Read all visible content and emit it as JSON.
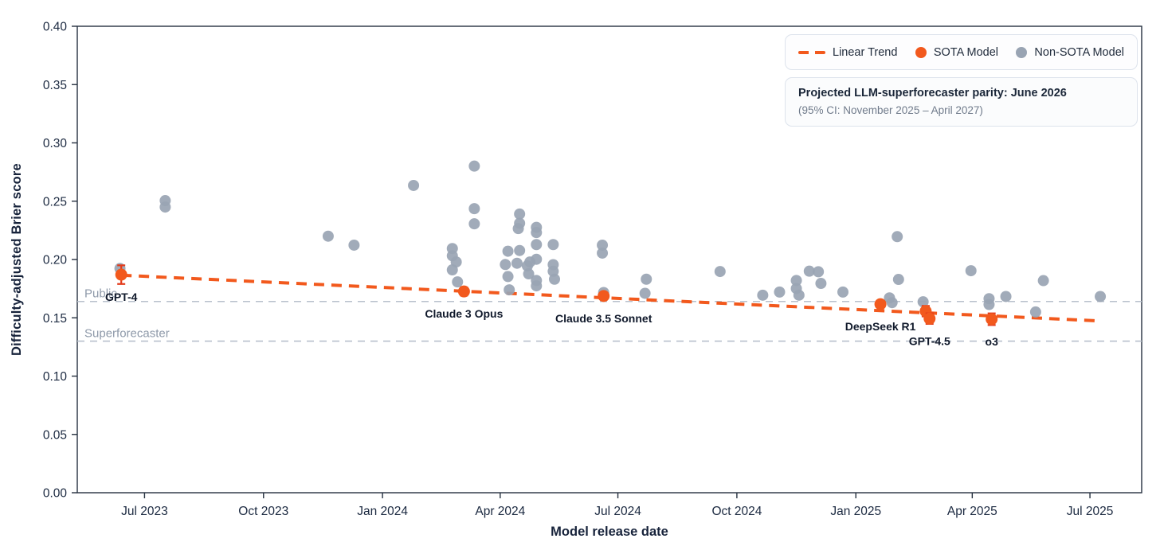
{
  "colors": {
    "accent_orange": "#f2591d",
    "error_bar": "#e23b1c",
    "non_sota_gray": "#99a4b3",
    "reference_line": "#b8c0cc",
    "dark_text": "#17233b",
    "muted_text": "#8e99a9",
    "frame": "#263140"
  },
  "chart_data": {
    "type": "scatter",
    "xlabel": "Model release date",
    "ylabel": "Difficulty-adjusted Brier score",
    "x_domain": [
      "2023-05-10",
      "2025-08-10"
    ],
    "ylim": [
      0.0,
      0.4
    ],
    "grid": false,
    "x_ticks": [
      {
        "date": "2023-07-01",
        "label": "Jul 2023"
      },
      {
        "date": "2023-10-01",
        "label": "Oct 2023"
      },
      {
        "date": "2024-01-01",
        "label": "Jan 2024"
      },
      {
        "date": "2024-04-01",
        "label": "Apr 2024"
      },
      {
        "date": "2024-07-01",
        "label": "Jul 2024"
      },
      {
        "date": "2024-10-01",
        "label": "Oct 2024"
      },
      {
        "date": "2025-01-01",
        "label": "Jan 2025"
      },
      {
        "date": "2025-04-01",
        "label": "Apr 2025"
      },
      {
        "date": "2025-07-01",
        "label": "Jul 2025"
      }
    ],
    "y_ticks": [
      {
        "value": 0.0,
        "label": "0.00"
      },
      {
        "value": 0.05,
        "label": "0.05"
      },
      {
        "value": 0.1,
        "label": "0.10"
      },
      {
        "value": 0.15,
        "label": "0.15"
      },
      {
        "value": 0.2,
        "label": "0.20"
      },
      {
        "value": 0.25,
        "label": "0.25"
      },
      {
        "value": 0.3,
        "label": "0.30"
      },
      {
        "value": 0.35,
        "label": "0.35"
      },
      {
        "value": 0.4,
        "label": "0.40"
      }
    ],
    "reference_lines": [
      {
        "label": "Public",
        "value": 0.164
      },
      {
        "label": "Superforecaster",
        "value": 0.13
      }
    ],
    "trend": {
      "name": "Linear Trend",
      "start": {
        "date": "2023-06-13",
        "value": 0.1865
      },
      "end": {
        "date": "2025-07-09",
        "value": 0.1473
      }
    },
    "series": [
      {
        "name": "SOTA Model",
        "points": [
          {
            "date": "2023-06-13",
            "value": 0.187,
            "err": 0.008,
            "label": "GPT-4"
          },
          {
            "date": "2024-03-04",
            "value": 0.1726,
            "err": 0.0035,
            "label": "Claude 3 Opus"
          },
          {
            "date": "2024-06-20",
            "value": 0.1687,
            "err": 0.003,
            "label": "Claude 3.5 Sonnet"
          },
          {
            "date": "2025-01-20",
            "value": 0.1617,
            "err": 0.003,
            "label": "DeepSeek R1"
          },
          {
            "date": "2025-02-24",
            "value": 0.1557,
            "err": 0.0045,
            "label": ""
          },
          {
            "date": "2025-02-27",
            "value": 0.1493,
            "err": 0.0045,
            "label": "GPT-4.5"
          },
          {
            "date": "2025-04-16",
            "value": 0.1488,
            "err": 0.005,
            "label": "o3"
          }
        ]
      },
      {
        "name": "Non-SOTA Model",
        "points": [
          [
            "2023-06-12",
            0.1923
          ],
          [
            "2023-07-17",
            0.2505
          ],
          [
            "2023-07-17",
            0.245
          ],
          [
            "2023-11-20",
            0.22
          ],
          [
            "2023-12-10",
            0.2123
          ],
          [
            "2024-01-25",
            0.2635
          ],
          [
            "2024-02-24",
            0.2094
          ],
          [
            "2024-02-24",
            0.2032
          ],
          [
            "2024-02-27",
            0.1979
          ],
          [
            "2024-02-24",
            0.1911
          ],
          [
            "2024-02-28",
            0.1808
          ],
          [
            "2024-03-12",
            0.2801
          ],
          [
            "2024-03-12",
            0.2436
          ],
          [
            "2024-03-12",
            0.2306
          ],
          [
            "2024-04-05",
            0.1957
          ],
          [
            "2024-04-07",
            0.2071
          ],
          [
            "2024-04-07",
            0.1854
          ],
          [
            "2024-04-08",
            0.174
          ],
          [
            "2024-04-14",
            0.1968
          ],
          [
            "2024-04-15",
            0.2265
          ],
          [
            "2024-04-16",
            0.239
          ],
          [
            "2024-04-16",
            0.2311
          ],
          [
            "2024-04-16",
            0.2077
          ],
          [
            "2024-04-22",
            0.1945
          ],
          [
            "2024-04-23",
            0.1877
          ],
          [
            "2024-04-24",
            0.1979
          ],
          [
            "2024-04-29",
            0.2276
          ],
          [
            "2024-04-29",
            0.2231
          ],
          [
            "2024-04-29",
            0.2128
          ],
          [
            "2024-04-29",
            0.2002
          ],
          [
            "2024-04-29",
            0.182
          ],
          [
            "2024-04-29",
            0.1774
          ],
          [
            "2024-05-12",
            0.2128
          ],
          [
            "2024-05-12",
            0.1956
          ],
          [
            "2024-05-12",
            0.1899
          ],
          [
            "2024-05-13",
            0.1831
          ],
          [
            "2024-06-19",
            0.2123
          ],
          [
            "2024-06-19",
            0.2055
          ],
          [
            "2024-06-20",
            0.1717
          ],
          [
            "2024-07-22",
            0.171
          ],
          [
            "2024-07-23",
            0.1831
          ],
          [
            "2024-09-18",
            0.1897
          ],
          [
            "2024-10-21",
            0.1694
          ],
          [
            "2024-11-03",
            0.1721
          ],
          [
            "2024-11-16",
            0.182
          ],
          [
            "2024-11-16",
            0.1751
          ],
          [
            "2024-11-18",
            0.1694
          ],
          [
            "2024-11-26",
            0.19
          ],
          [
            "2024-12-03",
            0.1895
          ],
          [
            "2024-12-05",
            0.1795
          ],
          [
            "2024-12-22",
            0.1721
          ],
          [
            "2025-01-27",
            0.1671
          ],
          [
            "2025-01-29",
            0.163
          ],
          [
            "2025-02-02",
            0.2196
          ],
          [
            "2025-02-03",
            0.1829
          ],
          [
            "2025-02-22",
            0.1637
          ],
          [
            "2025-03-31",
            0.1904
          ],
          [
            "2025-04-14",
            0.1664
          ],
          [
            "2025-04-14",
            0.1614
          ],
          [
            "2025-04-27",
            0.1683
          ],
          [
            "2025-05-20",
            0.155
          ],
          [
            "2025-05-26",
            0.1819
          ],
          [
            "2025-07-09",
            0.1683
          ]
        ]
      }
    ],
    "legend": {
      "items": [
        {
          "label": "Linear Trend",
          "type": "dash"
        },
        {
          "label": "SOTA Model",
          "type": "dot"
        },
        {
          "label": "Non-SOTA Model",
          "type": "dot"
        }
      ],
      "position": "top-right"
    },
    "annotation_box": {
      "title": "Projected LLM-superforecaster parity: June 2026",
      "subtitle": "(95% CI: November 2025 – April 2027)"
    }
  }
}
